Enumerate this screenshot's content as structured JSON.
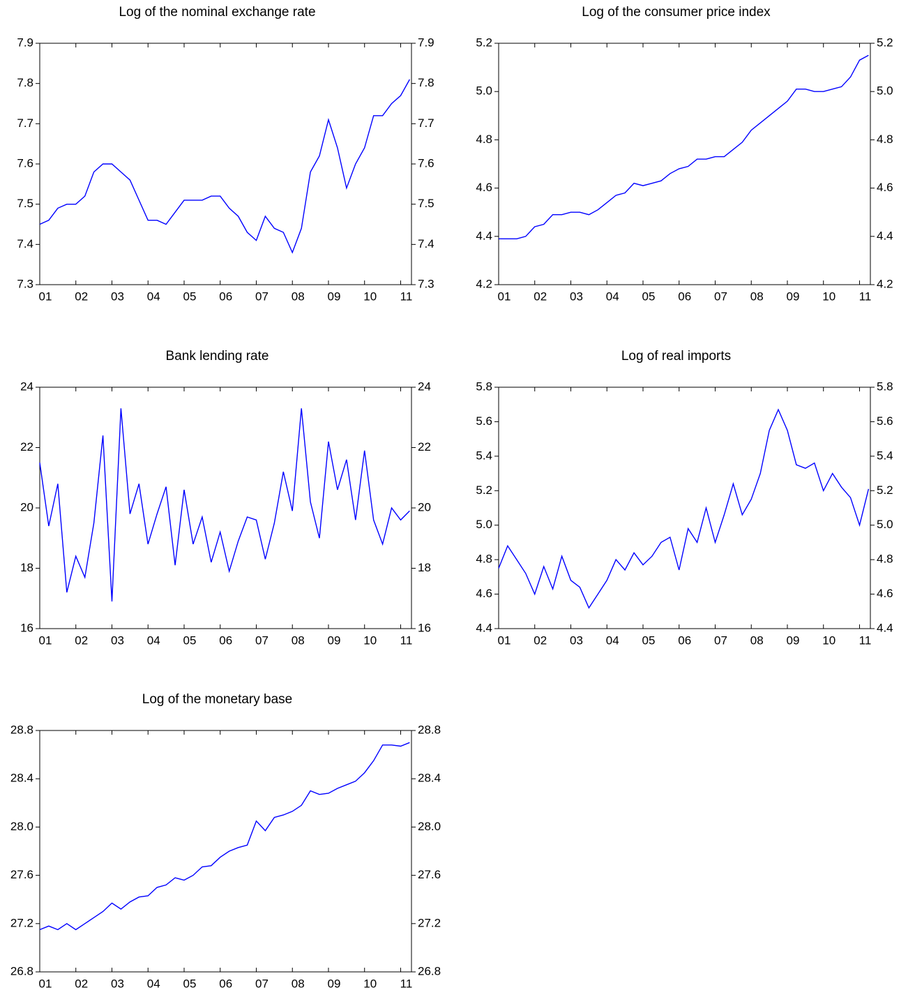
{
  "chart_data": [
    {
      "type": "line",
      "title": "Log of the nominal exchange rate",
      "color": "#0000ff",
      "x": [
        2001,
        2001.25,
        2001.5,
        2001.75,
        2002,
        2002.25,
        2002.5,
        2002.75,
        2003,
        2003.25,
        2003.5,
        2003.75,
        2004,
        2004.25,
        2004.5,
        2004.75,
        2005,
        2005.25,
        2005.5,
        2005.75,
        2006,
        2006.25,
        2006.5,
        2006.75,
        2007,
        2007.25,
        2007.5,
        2007.75,
        2008,
        2008.25,
        2008.5,
        2008.75,
        2009,
        2009.25,
        2009.5,
        2009.75,
        2010,
        2010.25,
        2010.5,
        2010.75,
        2011,
        2011.25
      ],
      "values": [
        7.45,
        7.46,
        7.49,
        7.5,
        7.5,
        7.52,
        7.58,
        7.6,
        7.6,
        7.58,
        7.56,
        7.51,
        7.46,
        7.46,
        7.45,
        7.48,
        7.51,
        7.51,
        7.51,
        7.52,
        7.52,
        7.49,
        7.47,
        7.43,
        7.41,
        7.47,
        7.44,
        7.43,
        7.38,
        7.44,
        7.58,
        7.62,
        7.71,
        7.64,
        7.54,
        7.6,
        7.64,
        7.72,
        7.72,
        7.75,
        7.77,
        7.81
      ],
      "xlim": [
        2001,
        2011.3
      ],
      "xticks": [
        {
          "value": 2001,
          "label": "01"
        },
        {
          "value": 2002,
          "label": "02"
        },
        {
          "value": 2003,
          "label": "03"
        },
        {
          "value": 2004,
          "label": "04"
        },
        {
          "value": 2005,
          "label": "05"
        },
        {
          "value": 2006,
          "label": "06"
        },
        {
          "value": 2007,
          "label": "07"
        },
        {
          "value": 2008,
          "label": "08"
        },
        {
          "value": 2009,
          "label": "09"
        },
        {
          "value": 2010,
          "label": "10"
        },
        {
          "value": 2011,
          "label": "11"
        }
      ],
      "ylim": [
        7.3,
        7.9
      ],
      "yticks": [
        7.3,
        7.4,
        7.5,
        7.6,
        7.7,
        7.8,
        7.9
      ]
    },
    {
      "type": "line",
      "title": "Log of the consumer price index",
      "color": "#0000ff",
      "x": [
        2001,
        2001.25,
        2001.5,
        2001.75,
        2002,
        2002.25,
        2002.5,
        2002.75,
        2003,
        2003.25,
        2003.5,
        2003.75,
        2004,
        2004.25,
        2004.5,
        2004.75,
        2005,
        2005.25,
        2005.5,
        2005.75,
        2006,
        2006.25,
        2006.5,
        2006.75,
        2007,
        2007.25,
        2007.5,
        2007.75,
        2008,
        2008.25,
        2008.5,
        2008.75,
        2009,
        2009.25,
        2009.5,
        2009.75,
        2010,
        2010.25,
        2010.5,
        2010.75,
        2011,
        2011.25
      ],
      "values": [
        4.39,
        4.39,
        4.39,
        4.4,
        4.44,
        4.45,
        4.49,
        4.49,
        4.5,
        4.5,
        4.49,
        4.51,
        4.54,
        4.57,
        4.58,
        4.62,
        4.61,
        4.62,
        4.63,
        4.66,
        4.68,
        4.69,
        4.72,
        4.72,
        4.73,
        4.73,
        4.76,
        4.79,
        4.84,
        4.87,
        4.9,
        4.93,
        4.96,
        5.01,
        5.01,
        5.0,
        5.0,
        5.01,
        5.02,
        5.06,
        5.13,
        5.15
      ],
      "xlim": [
        2001,
        2011.3
      ],
      "xticks": [
        {
          "value": 2001,
          "label": "01"
        },
        {
          "value": 2002,
          "label": "02"
        },
        {
          "value": 2003,
          "label": "03"
        },
        {
          "value": 2004,
          "label": "04"
        },
        {
          "value": 2005,
          "label": "05"
        },
        {
          "value": 2006,
          "label": "06"
        },
        {
          "value": 2007,
          "label": "07"
        },
        {
          "value": 2008,
          "label": "08"
        },
        {
          "value": 2009,
          "label": "09"
        },
        {
          "value": 2010,
          "label": "10"
        },
        {
          "value": 2011,
          "label": "11"
        }
      ],
      "ylim": [
        4.2,
        5.2
      ],
      "yticks": [
        4.2,
        4.4,
        4.6,
        4.8,
        {
          "value": 5,
          "label": "5.0"
        },
        5.2
      ]
    },
    {
      "type": "line",
      "title": "Bank lending rate",
      "color": "#0000ff",
      "x": [
        2001,
        2001.25,
        2001.5,
        2001.75,
        2002,
        2002.25,
        2002.5,
        2002.75,
        2003,
        2003.25,
        2003.5,
        2003.75,
        2004,
        2004.25,
        2004.5,
        2004.75,
        2005,
        2005.25,
        2005.5,
        2005.75,
        2006,
        2006.25,
        2006.5,
        2006.75,
        2007,
        2007.25,
        2007.5,
        2007.75,
        2008,
        2008.25,
        2008.5,
        2008.75,
        2009,
        2009.25,
        2009.5,
        2009.75,
        2010,
        2010.25,
        2010.5,
        2010.75,
        2011,
        2011.25
      ],
      "values": [
        21.5,
        19.4,
        20.8,
        17.2,
        18.4,
        17.7,
        19.5,
        22.4,
        16.9,
        23.3,
        19.8,
        20.8,
        18.8,
        19.8,
        20.7,
        18.1,
        20.6,
        18.8,
        19.7,
        18.2,
        19.2,
        17.9,
        18.9,
        19.7,
        19.6,
        18.3,
        19.5,
        21.2,
        19.9,
        23.3,
        20.2,
        19.0,
        22.2,
        20.6,
        21.6,
        19.6,
        21.9,
        19.6,
        18.8,
        20.0,
        19.6,
        19.9
      ],
      "xlim": [
        2001,
        2011.3
      ],
      "xticks": [
        {
          "value": 2001,
          "label": "01"
        },
        {
          "value": 2002,
          "label": "02"
        },
        {
          "value": 2003,
          "label": "03"
        },
        {
          "value": 2004,
          "label": "04"
        },
        {
          "value": 2005,
          "label": "05"
        },
        {
          "value": 2006,
          "label": "06"
        },
        {
          "value": 2007,
          "label": "07"
        },
        {
          "value": 2008,
          "label": "08"
        },
        {
          "value": 2009,
          "label": "09"
        },
        {
          "value": 2010,
          "label": "10"
        },
        {
          "value": 2011,
          "label": "11"
        }
      ],
      "ylim": [
        16,
        24
      ],
      "yticks": [
        16,
        18,
        20,
        22,
        24
      ]
    },
    {
      "type": "line",
      "title": "Log of real imports",
      "color": "#0000ff",
      "x": [
        2001,
        2001.25,
        2001.5,
        2001.75,
        2002,
        2002.25,
        2002.5,
        2002.75,
        2003,
        2003.25,
        2003.5,
        2003.75,
        2004,
        2004.25,
        2004.5,
        2004.75,
        2005,
        2005.25,
        2005.5,
        2005.75,
        2006,
        2006.25,
        2006.5,
        2006.75,
        2007,
        2007.25,
        2007.5,
        2007.75,
        2008,
        2008.25,
        2008.5,
        2008.75,
        2009,
        2009.25,
        2009.5,
        2009.75,
        2010,
        2010.25,
        2010.5,
        2010.75,
        2011,
        2011.25
      ],
      "values": [
        4.75,
        4.88,
        4.8,
        4.72,
        4.6,
        4.76,
        4.63,
        4.82,
        4.68,
        4.64,
        4.52,
        4.6,
        4.68,
        4.8,
        4.74,
        4.84,
        4.77,
        4.82,
        4.9,
        4.93,
        4.74,
        4.98,
        4.9,
        5.1,
        4.9,
        5.06,
        5.24,
        5.06,
        5.15,
        5.3,
        5.55,
        5.67,
        5.55,
        5.35,
        5.33,
        5.36,
        5.2,
        5.3,
        5.22,
        5.16,
        5.0,
        5.21
      ],
      "xlim": [
        2001,
        2011.3
      ],
      "xticks": [
        {
          "value": 2001,
          "label": "01"
        },
        {
          "value": 2002,
          "label": "02"
        },
        {
          "value": 2003,
          "label": "03"
        },
        {
          "value": 2004,
          "label": "04"
        },
        {
          "value": 2005,
          "label": "05"
        },
        {
          "value": 2006,
          "label": "06"
        },
        {
          "value": 2007,
          "label": "07"
        },
        {
          "value": 2008,
          "label": "08"
        },
        {
          "value": 2009,
          "label": "09"
        },
        {
          "value": 2010,
          "label": "10"
        },
        {
          "value": 2011,
          "label": "11"
        }
      ],
      "ylim": [
        4.4,
        5.8
      ],
      "yticks": [
        4.4,
        4.6,
        4.8,
        {
          "value": 5,
          "label": "5.0"
        },
        5.2,
        5.4,
        5.6,
        5.8
      ]
    },
    {
      "type": "line",
      "title": "Log of the monetary base",
      "color": "#0000ff",
      "x": [
        2001,
        2001.25,
        2001.5,
        2001.75,
        2002,
        2002.25,
        2002.5,
        2002.75,
        2003,
        2003.25,
        2003.5,
        2003.75,
        2004,
        2004.25,
        2004.5,
        2004.75,
        2005,
        2005.25,
        2005.5,
        2005.75,
        2006,
        2006.25,
        2006.5,
        2006.75,
        2007,
        2007.25,
        2007.5,
        2007.75,
        2008,
        2008.25,
        2008.5,
        2008.75,
        2009,
        2009.25,
        2009.5,
        2009.75,
        2010,
        2010.25,
        2010.5,
        2010.75,
        2011,
        2011.25
      ],
      "values": [
        27.15,
        27.18,
        27.15,
        27.2,
        27.15,
        27.2,
        27.25,
        27.3,
        27.37,
        27.32,
        27.38,
        27.42,
        27.43,
        27.5,
        27.52,
        27.58,
        27.56,
        27.6,
        27.67,
        27.68,
        27.75,
        27.8,
        27.83,
        27.85,
        28.05,
        27.97,
        28.08,
        28.1,
        28.13,
        28.18,
        28.3,
        28.27,
        28.28,
        28.32,
        28.35,
        28.38,
        28.45,
        28.55,
        28.68,
        28.68,
        28.67,
        28.7
      ],
      "xlim": [
        2001,
        2011.3
      ],
      "xticks": [
        {
          "value": 2001,
          "label": "01"
        },
        {
          "value": 2002,
          "label": "02"
        },
        {
          "value": 2003,
          "label": "03"
        },
        {
          "value": 2004,
          "label": "04"
        },
        {
          "value": 2005,
          "label": "05"
        },
        {
          "value": 2006,
          "label": "06"
        },
        {
          "value": 2007,
          "label": "07"
        },
        {
          "value": 2008,
          "label": "08"
        },
        {
          "value": 2009,
          "label": "09"
        },
        {
          "value": 2010,
          "label": "10"
        },
        {
          "value": 2011,
          "label": "11"
        }
      ],
      "ylim": [
        26.8,
        28.8
      ],
      "yticks": [
        26.8,
        27.2,
        27.6,
        {
          "value": 28,
          "label": "28.0"
        },
        28.4,
        28.8
      ]
    }
  ]
}
